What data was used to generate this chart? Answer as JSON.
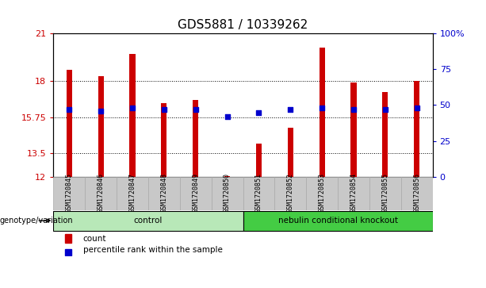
{
  "title": "GDS5881 / 10339262",
  "samples": [
    "GSM1720845",
    "GSM1720846",
    "GSM1720847",
    "GSM1720848",
    "GSM1720849",
    "GSM1720850",
    "GSM1720851",
    "GSM1720852",
    "GSM1720853",
    "GSM1720854",
    "GSM1720855",
    "GSM1720856"
  ],
  "count_values": [
    18.7,
    18.3,
    19.7,
    16.6,
    16.8,
    12.05,
    14.1,
    15.1,
    20.1,
    17.9,
    17.3,
    18.0
  ],
  "percentile_values": [
    47,
    46,
    48,
    47,
    47,
    42,
    45,
    47,
    48,
    47,
    47,
    48
  ],
  "ylim_left": [
    12,
    21
  ],
  "ylim_right": [
    0,
    100
  ],
  "yticks_left": [
    12,
    13.5,
    15.75,
    18,
    21
  ],
  "yticks_right": [
    0,
    25,
    50,
    75,
    100
  ],
  "ytick_labels_left": [
    "12",
    "13.5",
    "15.75",
    "18",
    "21"
  ],
  "ytick_labels_right": [
    "0",
    "25",
    "50",
    "75",
    "100%"
  ],
  "bar_color": "#cc0000",
  "dot_color": "#0000cc",
  "bar_bottom": 12,
  "groups": [
    {
      "label": "control",
      "start": 0,
      "end": 5,
      "color": "#b8e8b8"
    },
    {
      "label": "nebulin conditional knockout",
      "start": 6,
      "end": 11,
      "color": "#44cc44"
    }
  ],
  "group_label": "genotype/variation",
  "legend": [
    {
      "label": "count",
      "color": "#cc0000"
    },
    {
      "label": "percentile rank within the sample",
      "color": "#0000cc"
    }
  ],
  "bar_width": 0.18,
  "dot_size": 18,
  "title_fontsize": 11,
  "tick_fontsize": 8,
  "left_tick_color": "#cc0000",
  "right_tick_color": "#0000cc",
  "box_color": "#c8c8c8",
  "box_edge_color": "#aaaaaa"
}
